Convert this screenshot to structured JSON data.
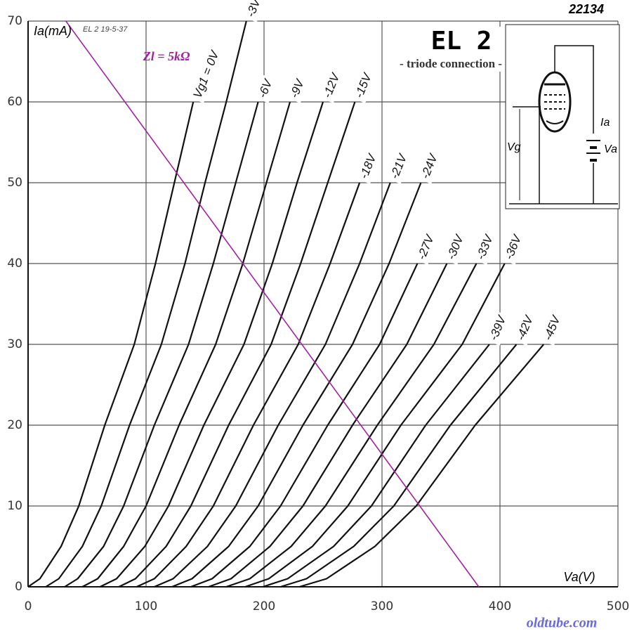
{
  "chart_data": {
    "type": "line",
    "title": "EL 2",
    "subtitle": "- triode connection -",
    "sheet_number": "22134",
    "sheet_note": "EL 2   19-5-37",
    "x_label": "Va(V)",
    "y_label": "Ia(mA)",
    "watermark": "oldtube.com",
    "circuit_labels": {
      "anode_current": "Ia",
      "anode_voltage": "Va",
      "grid_voltage": "Vg"
    },
    "xlim": [
      0,
      500
    ],
    "ylim": [
      0,
      70
    ],
    "xticks": [
      0,
      100,
      200,
      300,
      400,
      500
    ],
    "yticks": [
      0,
      10,
      20,
      30,
      40,
      50,
      60,
      70
    ],
    "grid": true,
    "series": [
      {
        "name": "Vg1 = 0V",
        "color": "#111111",
        "x": [
          0,
          10,
          28,
          43,
          65,
          90,
          108,
          124,
          140
        ],
        "values": [
          0,
          1,
          5,
          10,
          20,
          30,
          40,
          50,
          60
        ]
      },
      {
        "name": "-3V",
        "color": "#111111",
        "x": [
          15,
          26,
          46,
          62,
          86,
          113,
          133,
          150,
          168,
          185
        ],
        "values": [
          0,
          1,
          5,
          10,
          20,
          30,
          40,
          50,
          60,
          70
        ]
      },
      {
        "name": "-6V",
        "color": "#111111",
        "x": [
          31,
          42,
          64,
          81,
          107,
          136,
          157,
          176,
          195
        ],
        "values": [
          0,
          1,
          5,
          10,
          20,
          30,
          40,
          50,
          60
        ]
      },
      {
        "name": "-9V",
        "color": "#111111",
        "x": [
          46,
          59,
          81,
          100,
          128,
          159,
          182,
          202,
          222
        ],
        "values": [
          0,
          1,
          5,
          10,
          20,
          30,
          40,
          50,
          60
        ]
      },
      {
        "name": "-12V",
        "color": "#111111",
        "x": [
          61,
          75,
          99,
          119,
          149,
          183,
          207,
          228,
          250
        ],
        "values": [
          0,
          1,
          5,
          10,
          20,
          30,
          40,
          50,
          60
        ]
      },
      {
        "name": "-15V",
        "color": "#111111",
        "x": [
          77,
          91,
          117,
          138,
          170,
          206,
          231,
          254,
          277
        ],
        "values": [
          0,
          1,
          5,
          10,
          20,
          30,
          40,
          50,
          60
        ]
      },
      {
        "name": "-18V",
        "color": "#111111",
        "x": [
          92,
          107,
          134,
          157,
          191,
          229,
          256,
          281
        ],
        "values": [
          0,
          1,
          5,
          10,
          20,
          30,
          40,
          50
        ]
      },
      {
        "name": "-21V",
        "color": "#111111",
        "x": [
          107,
          123,
          152,
          176,
          212,
          252,
          281,
          307
        ],
        "values": [
          0,
          1,
          5,
          10,
          20,
          30,
          40,
          50
        ]
      },
      {
        "name": "-24V",
        "color": "#111111",
        "x": [
          122,
          139,
          170,
          195,
          233,
          275,
          306,
          333
        ],
        "values": [
          0,
          1,
          5,
          10,
          20,
          30,
          40,
          50
        ]
      },
      {
        "name": "-27V",
        "color": "#111111",
        "x": [
          138,
          156,
          188,
          214,
          254,
          298,
          330
        ],
        "values": [
          0,
          1,
          5,
          10,
          20,
          30,
          40
        ]
      },
      {
        "name": "-30V",
        "color": "#111111",
        "x": [
          153,
          172,
          205,
          233,
          275,
          321,
          355
        ],
        "values": [
          0,
          1,
          5,
          10,
          20,
          30,
          40
        ]
      },
      {
        "name": "-33V",
        "color": "#111111",
        "x": [
          168,
          188,
          223,
          252,
          296,
          344,
          380
        ],
        "values": [
          0,
          1,
          5,
          10,
          20,
          30,
          40
        ]
      },
      {
        "name": "-36V",
        "color": "#111111",
        "x": [
          184,
          204,
          241,
          271,
          316,
          368,
          404
        ],
        "values": [
          0,
          1,
          5,
          10,
          20,
          30,
          40
        ]
      },
      {
        "name": "-39V",
        "color": "#111111",
        "x": [
          199,
          220,
          259,
          291,
          337,
          391
        ],
        "values": [
          0,
          1,
          5,
          10,
          20,
          30
        ]
      },
      {
        "name": "-42V",
        "color": "#111111",
        "x": [
          214,
          236,
          276,
          310,
          358,
          414
        ],
        "values": [
          0,
          1,
          5,
          10,
          20,
          30
        ]
      },
      {
        "name": "-45V",
        "color": "#111111",
        "x": [
          230,
          253,
          294,
          329,
          379,
          437
        ],
        "values": [
          0,
          1,
          5,
          10,
          20,
          30
        ]
      },
      {
        "name": "Zl = 5kΩ",
        "color": "#a020a0",
        "x": [
          32,
          382
        ],
        "values": [
          70,
          0
        ]
      }
    ]
  }
}
